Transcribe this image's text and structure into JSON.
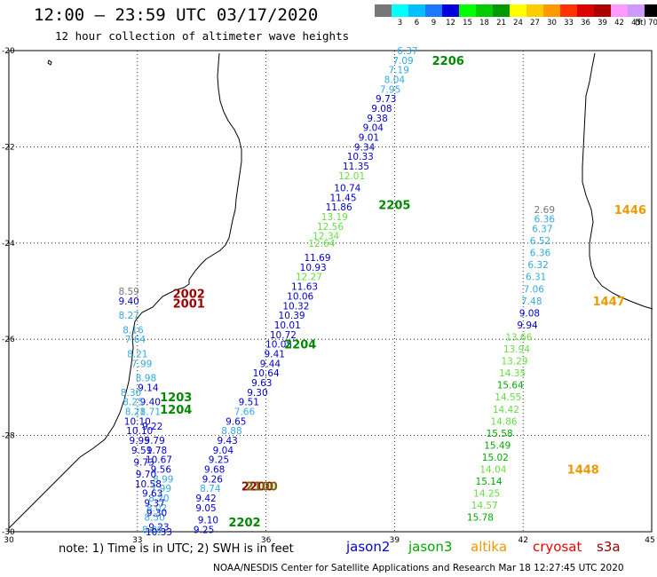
{
  "header": {
    "title": "12:00 — 23:59 UTC 03/17/2020",
    "subtitle": "12 hour collection of altimeter wave heights"
  },
  "colorbar": {
    "unit": "(ft)",
    "items": [
      {
        "label": "",
        "color": "#777777"
      },
      {
        "label": "3",
        "color": "#00ffff"
      },
      {
        "label": "6",
        "color": "#00bfff"
      },
      {
        "label": "9",
        "color": "#1e78ff"
      },
      {
        "label": "12",
        "color": "#0000dd"
      },
      {
        "label": "15",
        "color": "#00ff00"
      },
      {
        "label": "18",
        "color": "#00cc00"
      },
      {
        "label": "21",
        "color": "#009900"
      },
      {
        "label": "24",
        "color": "#ffff00"
      },
      {
        "label": "27",
        "color": "#ffcc00"
      },
      {
        "label": "30",
        "color": "#ff9900"
      },
      {
        "label": "33",
        "color": "#ff3300"
      },
      {
        "label": "36",
        "color": "#dd0000"
      },
      {
        "label": "39",
        "color": "#aa0000"
      },
      {
        "label": "42",
        "color": "#ff99ff"
      },
      {
        "label": "45",
        "color": "#cc99ff"
      },
      {
        "label": "70",
        "color": "#000000"
      }
    ]
  },
  "map": {
    "lon_range": [
      30,
      45
    ],
    "lat_range": [
      -30,
      -20
    ],
    "lon_ticks": [
      {
        "value": 30,
        "label": "30"
      },
      {
        "value": 33,
        "label": "33"
      },
      {
        "value": 36,
        "label": "36"
      },
      {
        "value": 39,
        "label": "39"
      },
      {
        "value": 42,
        "label": "42"
      },
      {
        "value": 45,
        "label": "45"
      }
    ],
    "lat_ticks": [
      {
        "value": -20,
        "label": "-20"
      },
      {
        "value": -22,
        "label": "-22"
      },
      {
        "value": -24,
        "label": "-24"
      },
      {
        "value": -26,
        "label": "-26"
      },
      {
        "value": -28,
        "label": "-28"
      },
      {
        "value": -30,
        "label": "-30"
      }
    ],
    "labels": [
      {
        "text": "6.37",
        "lon": 39.3,
        "lat": -20.0,
        "color": "#33aadd"
      },
      {
        "text": "7.09",
        "lon": 39.2,
        "lat": -20.2,
        "color": "#33aadd"
      },
      {
        "text": "7.19",
        "lon": 39.1,
        "lat": -20.4,
        "color": "#33aadd"
      },
      {
        "text": "8.04",
        "lon": 39.0,
        "lat": -20.6,
        "color": "#33aadd"
      },
      {
        "text": "7.95",
        "lon": 38.9,
        "lat": -20.8,
        "color": "#33aadd"
      },
      {
        "text": "9.73",
        "lon": 38.8,
        "lat": -21.0,
        "color": "#0000cc"
      },
      {
        "text": "9.08",
        "lon": 38.7,
        "lat": -21.2,
        "color": "#0000cc"
      },
      {
        "text": "9.38",
        "lon": 38.6,
        "lat": -21.4,
        "color": "#0000cc"
      },
      {
        "text": "9.04",
        "lon": 38.5,
        "lat": -21.6,
        "color": "#0000cc"
      },
      {
        "text": "9.01",
        "lon": 38.4,
        "lat": -21.8,
        "color": "#0000cc"
      },
      {
        "text": "9.34",
        "lon": 38.3,
        "lat": -22.0,
        "color": "#0000cc"
      },
      {
        "text": "10.33",
        "lon": 38.2,
        "lat": -22.2,
        "color": "#0000cc"
      },
      {
        "text": "11.35",
        "lon": 38.1,
        "lat": -22.4,
        "color": "#0000cc"
      },
      {
        "text": "12.01",
        "lon": 38.0,
        "lat": -22.6,
        "color": "#66dd44"
      },
      {
        "text": "10.74",
        "lon": 37.9,
        "lat": -22.85,
        "color": "#0000cc"
      },
      {
        "text": "11.45",
        "lon": 37.8,
        "lat": -23.05,
        "color": "#0000cc"
      },
      {
        "text": "11.86",
        "lon": 37.7,
        "lat": -23.25,
        "color": "#0000cc"
      },
      {
        "text": "13.19",
        "lon": 37.6,
        "lat": -23.45,
        "color": "#66dd44"
      },
      {
        "text": "12.56",
        "lon": 37.5,
        "lat": -23.65,
        "color": "#66dd44"
      },
      {
        "text": "12.34",
        "lon": 37.4,
        "lat": -23.85,
        "color": "#66dd44"
      },
      {
        "text": "12.64",
        "lon": 37.3,
        "lat": -24.0,
        "color": "#66dd44"
      },
      {
        "text": "11.69",
        "lon": 37.2,
        "lat": -24.3,
        "color": "#0000cc"
      },
      {
        "text": "10.93",
        "lon": 37.1,
        "lat": -24.5,
        "color": "#0000cc"
      },
      {
        "text": "12.27",
        "lon": 37.0,
        "lat": -24.7,
        "color": "#66dd44"
      },
      {
        "text": "11.63",
        "lon": 36.9,
        "lat": -24.9,
        "color": "#0000cc"
      },
      {
        "text": "10.06",
        "lon": 36.8,
        "lat": -25.1,
        "color": "#0000cc"
      },
      {
        "text": "10.32",
        "lon": 36.7,
        "lat": -25.3,
        "color": "#0000cc"
      },
      {
        "text": "10.39",
        "lon": 36.6,
        "lat": -25.5,
        "color": "#0000cc"
      },
      {
        "text": "10.01",
        "lon": 36.5,
        "lat": -25.7,
        "color": "#0000cc"
      },
      {
        "text": "10.72",
        "lon": 36.4,
        "lat": -25.9,
        "color": "#0000cc"
      },
      {
        "text": "10.05",
        "lon": 36.3,
        "lat": -26.1,
        "color": "#0000cc"
      },
      {
        "text": "9.41",
        "lon": 36.2,
        "lat": -26.3,
        "color": "#0000cc"
      },
      {
        "text": "9.44",
        "lon": 36.1,
        "lat": -26.5,
        "color": "#0000cc"
      },
      {
        "text": "10.64",
        "lon": 36.0,
        "lat": -26.7,
        "color": "#0000cc"
      },
      {
        "text": "9.63",
        "lon": 35.9,
        "lat": -26.9,
        "color": "#0000cc"
      },
      {
        "text": "9.30",
        "lon": 35.8,
        "lat": -27.1,
        "color": "#0000cc"
      },
      {
        "text": "9.51",
        "lon": 35.6,
        "lat": -27.3,
        "color": "#0000cc"
      },
      {
        "text": "7.66",
        "lon": 35.5,
        "lat": -27.5,
        "color": "#33aadd"
      },
      {
        "text": "9.65",
        "lon": 35.3,
        "lat": -27.7,
        "color": "#0000cc"
      },
      {
        "text": "8.88",
        "lon": 35.2,
        "lat": -27.9,
        "color": "#33aadd"
      },
      {
        "text": "9.43",
        "lon": 35.1,
        "lat": -28.1,
        "color": "#0000cc"
      },
      {
        "text": "9.04",
        "lon": 35.0,
        "lat": -28.3,
        "color": "#0000cc"
      },
      {
        "text": "9.25",
        "lon": 34.9,
        "lat": -28.5,
        "color": "#0000cc"
      },
      {
        "text": "9.68",
        "lon": 34.8,
        "lat": -28.7,
        "color": "#0000cc"
      },
      {
        "text": "9.26",
        "lon": 34.75,
        "lat": -28.9,
        "color": "#0000cc"
      },
      {
        "text": "8.74",
        "lon": 34.7,
        "lat": -29.1,
        "color": "#33aadd"
      },
      {
        "text": "9.42",
        "lon": 34.6,
        "lat": -29.3,
        "color": "#0000cc"
      },
      {
        "text": "9.05",
        "lon": 34.6,
        "lat": -29.5,
        "color": "#0000cc"
      },
      {
        "text": "9.10",
        "lon": 34.65,
        "lat": -29.75,
        "color": "#0000cc"
      },
      {
        "text": "9.25",
        "lon": 34.55,
        "lat": -29.95,
        "color": "#0000cc"
      },
      {
        "text": "8.59",
        "lon": 32.8,
        "lat": -25.0,
        "color": "#777777"
      },
      {
        "text": "9.40",
        "lon": 32.8,
        "lat": -25.2,
        "color": "#0000cc"
      },
      {
        "text": "8.27",
        "lon": 32.8,
        "lat": -25.5,
        "color": "#33aadd"
      },
      {
        "text": "8.16",
        "lon": 32.9,
        "lat": -25.8,
        "color": "#33aadd"
      },
      {
        "text": "7.64",
        "lon": 32.95,
        "lat": -26.0,
        "color": "#33aadd"
      },
      {
        "text": "8.21",
        "lon": 33.0,
        "lat": -26.3,
        "color": "#33aadd"
      },
      {
        "text": "7.99",
        "lon": 33.1,
        "lat": -26.5,
        "color": "#33aadd"
      },
      {
        "text": "8.98",
        "lon": 33.2,
        "lat": -26.8,
        "color": "#33aadd"
      },
      {
        "text": "9.14",
        "lon": 33.25,
        "lat": -27.0,
        "color": "#0000cc"
      },
      {
        "text": "9.40",
        "lon": 33.3,
        "lat": -27.3,
        "color": "#0000cc"
      },
      {
        "text": "8.71",
        "lon": 33.3,
        "lat": -27.5,
        "color": "#33aadd"
      },
      {
        "text": "9.22",
        "lon": 33.35,
        "lat": -27.8,
        "color": "#0000cc"
      },
      {
        "text": "9.79",
        "lon": 33.4,
        "lat": -28.1,
        "color": "#0000cc"
      },
      {
        "text": "9.78",
        "lon": 33.45,
        "lat": -28.3,
        "color": "#0000cc"
      },
      {
        "text": "10.67",
        "lon": 33.5,
        "lat": -28.5,
        "color": "#0000cc"
      },
      {
        "text": "9.56",
        "lon": 33.55,
        "lat": -28.7,
        "color": "#0000cc"
      },
      {
        "text": "8.99",
        "lon": 33.6,
        "lat": -28.9,
        "color": "#33aadd"
      },
      {
        "text": "7.99",
        "lon": 33.55,
        "lat": -29.1,
        "color": "#33aadd"
      },
      {
        "text": "8.20",
        "lon": 33.5,
        "lat": -29.3,
        "color": "#33aadd"
      },
      {
        "text": "8.02",
        "lon": 33.45,
        "lat": -29.5,
        "color": "#33aadd"
      },
      {
        "text": "8.50",
        "lon": 33.4,
        "lat": -29.7,
        "color": "#33aadd"
      },
      {
        "text": "9.23",
        "lon": 33.5,
        "lat": -29.9,
        "color": "#0000cc"
      },
      {
        "text": "8.80",
        "lon": 33.35,
        "lat": -29.95,
        "color": "#33aadd"
      },
      {
        "text": "8.30",
        "lon": 32.85,
        "lat": -27.1,
        "color": "#33aadd"
      },
      {
        "text": "8.25",
        "lon": 32.9,
        "lat": -27.3,
        "color": "#33aadd"
      },
      {
        "text": "8.21",
        "lon": 32.95,
        "lat": -27.5,
        "color": "#33aadd"
      },
      {
        "text": "10.10",
        "lon": 33.0,
        "lat": -27.7,
        "color": "#0000cc"
      },
      {
        "text": "10.10",
        "lon": 33.05,
        "lat": -27.9,
        "color": "#0000cc"
      },
      {
        "text": "9.95",
        "lon": 33.05,
        "lat": -28.1,
        "color": "#0000cc"
      },
      {
        "text": "9.51",
        "lon": 33.1,
        "lat": -28.3,
        "color": "#0000cc"
      },
      {
        "text": "9.73",
        "lon": 33.15,
        "lat": -28.55,
        "color": "#0000cc"
      },
      {
        "text": "9.70",
        "lon": 33.2,
        "lat": -28.8,
        "color": "#0000cc"
      },
      {
        "text": "10.58",
        "lon": 33.25,
        "lat": -29.0,
        "color": "#0000cc"
      },
      {
        "text": "9.63",
        "lon": 33.35,
        "lat": -29.2,
        "color": "#0000cc"
      },
      {
        "text": "9.37",
        "lon": 33.4,
        "lat": -29.4,
        "color": "#0000cc"
      },
      {
        "text": "9.30",
        "lon": 33.45,
        "lat": -29.6,
        "color": "#0000cc"
      },
      {
        "text": "10.33",
        "lon": 33.5,
        "lat": -30.0,
        "color": "#0000cc"
      },
      {
        "text": "2.69",
        "lon": 42.5,
        "lat": -23.3,
        "color": "#777777"
      },
      {
        "text": "6.36",
        "lon": 42.5,
        "lat": -23.5,
        "color": "#33aadd"
      },
      {
        "text": "6.37",
        "lon": 42.45,
        "lat": -23.7,
        "color": "#33aadd"
      },
      {
        "text": "6.52",
        "lon": 42.4,
        "lat": -23.95,
        "color": "#33aadd"
      },
      {
        "text": "6.36",
        "lon": 42.4,
        "lat": -24.2,
        "color": "#33aadd"
      },
      {
        "text": "6.32",
        "lon": 42.35,
        "lat": -24.45,
        "color": "#33aadd"
      },
      {
        "text": "6.31",
        "lon": 42.3,
        "lat": -24.7,
        "color": "#33aadd"
      },
      {
        "text": "7.06",
        "lon": 42.25,
        "lat": -24.95,
        "color": "#33aadd"
      },
      {
        "text": "7.48",
        "lon": 42.2,
        "lat": -25.2,
        "color": "#33aadd"
      },
      {
        "text": "9.08",
        "lon": 42.15,
        "lat": -25.45,
        "color": "#0000cc"
      },
      {
        "text": "9.94",
        "lon": 42.1,
        "lat": -25.7,
        "color": "#0000cc"
      },
      {
        "text": "13.66",
        "lon": 41.9,
        "lat": -25.95,
        "color": "#66dd44"
      },
      {
        "text": "13.94",
        "lon": 41.85,
        "lat": -26.2,
        "color": "#66dd44"
      },
      {
        "text": "13.29",
        "lon": 41.8,
        "lat": -26.45,
        "color": "#66dd44"
      },
      {
        "text": "14.35",
        "lon": 41.75,
        "lat": -26.7,
        "color": "#66dd44"
      },
      {
        "text": "15.64",
        "lon": 41.7,
        "lat": -26.95,
        "color": "#00aa00"
      },
      {
        "text": "14.55",
        "lon": 41.65,
        "lat": -27.2,
        "color": "#66dd44"
      },
      {
        "text": "14.42",
        "lon": 41.6,
        "lat": -27.45,
        "color": "#66dd44"
      },
      {
        "text": "14.86",
        "lon": 41.55,
        "lat": -27.7,
        "color": "#66dd44"
      },
      {
        "text": "15.58",
        "lon": 41.45,
        "lat": -27.95,
        "color": "#00aa00"
      },
      {
        "text": "15.49",
        "lon": 41.4,
        "lat": -28.2,
        "color": "#00aa00"
      },
      {
        "text": "15.02",
        "lon": 41.35,
        "lat": -28.45,
        "color": "#00aa00"
      },
      {
        "text": "14.04",
        "lon": 41.3,
        "lat": -28.7,
        "color": "#66dd44"
      },
      {
        "text": "15.14",
        "lon": 41.2,
        "lat": -28.95,
        "color": "#00aa00"
      },
      {
        "text": "14.25",
        "lon": 41.15,
        "lat": -29.2,
        "color": "#66dd44"
      },
      {
        "text": "14.57",
        "lon": 41.1,
        "lat": -29.45,
        "color": "#66dd44"
      },
      {
        "text": "15.78",
        "lon": 41.0,
        "lat": -29.7,
        "color": "#00aa00"
      }
    ],
    "pass_labels": [
      {
        "text": "2206",
        "lon": 40.25,
        "lat": -20.2,
        "color": "#008800"
      },
      {
        "text": "2205",
        "lon": 39.0,
        "lat": -23.2,
        "color": "#008800"
      },
      {
        "text": "2204",
        "lon": 36.8,
        "lat": -26.1,
        "color": "#008800"
      },
      {
        "text": "2002",
        "lon": 34.2,
        "lat": -25.05,
        "color": "#990000"
      },
      {
        "text": "2001",
        "lon": 34.2,
        "lat": -25.25,
        "color": "#990000"
      },
      {
        "text": "1203",
        "lon": 33.9,
        "lat": -27.2,
        "color": "#008800"
      },
      {
        "text": "1204",
        "lon": 33.9,
        "lat": -27.45,
        "color": "#008800"
      },
      {
        "text": "2200",
        "lon": 35.8,
        "lat": -29.05,
        "color": "#990000"
      },
      {
        "text": "2100",
        "lon": 35.9,
        "lat": -29.05,
        "color": "#776600"
      },
      {
        "text": "2202",
        "lon": 35.5,
        "lat": -29.8,
        "color": "#008800"
      },
      {
        "text": "1446",
        "lon": 44.5,
        "lat": -23.3,
        "color": "#ee9900"
      },
      {
        "text": "1447",
        "lon": 44.0,
        "lat": -25.2,
        "color": "#ee9900"
      },
      {
        "text": "1448",
        "lon": 43.4,
        "lat": -28.7,
        "color": "#ee9900"
      }
    ]
  },
  "footer": {
    "note": "note: 1) Time is in UTC; 2) SWH is in feet",
    "satellites": [
      {
        "name": "jason2",
        "color": "#0000cc"
      },
      {
        "name": "jason3",
        "color": "#00aa00"
      },
      {
        "name": "altika",
        "color": "#ee9900"
      },
      {
        "name": "cryosat",
        "color": "#ee0000"
      },
      {
        "name": "s3a",
        "color": "#990000"
      }
    ],
    "credit": "NOAA/NESDIS Center for Satellite Applications and Research   Mar 18 12:27:45 UTC 2020"
  }
}
